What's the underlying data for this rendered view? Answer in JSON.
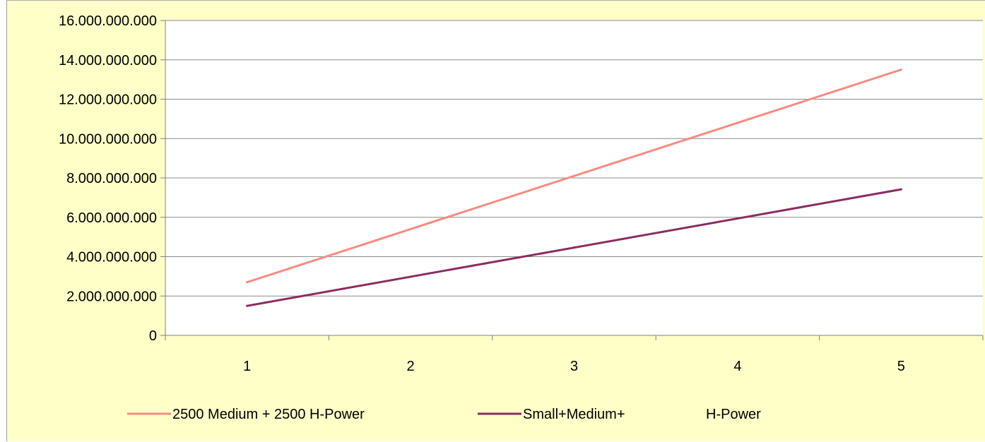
{
  "colors": {
    "background": "#ffffc8",
    "plot_area": "#ffffff",
    "gridline": "#8c8c8c",
    "series_1": "#f98b82",
    "series_2": "#8b2c61"
  },
  "chart_data": {
    "type": "line",
    "title": "",
    "xlabel": "",
    "ylabel": "",
    "categories": [
      "1",
      "2",
      "3",
      "4",
      "5"
    ],
    "ylim": [
      0,
      16000000000
    ],
    "y_ticks": [
      0,
      2000000000,
      4000000000,
      6000000000,
      8000000000,
      10000000000,
      12000000000,
      14000000000,
      16000000000
    ],
    "y_tick_labels": [
      "0",
      "2.000.000.000",
      "4.000.000.000",
      "6.000.000.000",
      "8.000.000.000",
      "10.000.000.000",
      "12.000.000.000",
      "14.000.000.000",
      "16.000.000.000"
    ],
    "grid": true,
    "legend_position": "bottom",
    "series": [
      {
        "name": "2500 Medium + 2500 H-Power",
        "values": [
          2700000000,
          5400000000,
          8100000000,
          10800000000,
          13500000000
        ],
        "color": "#f98b82"
      },
      {
        "name": "Small+Medium+ H-Power",
        "legend_parts": [
          "Small+Medium+",
          "H-Power"
        ],
        "values": [
          1500000000,
          2980000000,
          4460000000,
          5940000000,
          7420000000
        ],
        "color": "#8b2c61"
      }
    ]
  }
}
